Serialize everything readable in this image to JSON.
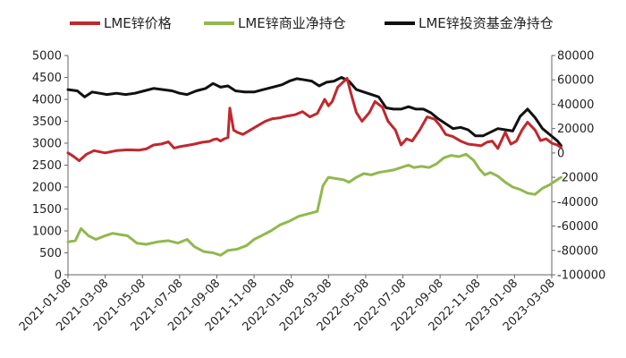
{
  "chart_data": {
    "type": "line",
    "title": "",
    "xlabel": "",
    "ylabel_left": "",
    "ylabel_right": "",
    "legend": {
      "position": "top"
    },
    "ylim_left": [
      0,
      5000
    ],
    "ylim_right": [
      -100000,
      80000
    ],
    "yticks_left": [
      0,
      500,
      1000,
      1500,
      2000,
      2500,
      3000,
      3500,
      4000,
      4500,
      5000
    ],
    "yticks_right": [
      -100000,
      -80000,
      -60000,
      -40000,
      -20000,
      0,
      20000,
      40000,
      60000,
      80000
    ],
    "x_ticks": [
      "2021-01-08",
      "2021-03-08",
      "2021-05-08",
      "2021-07-08",
      "2021-09-08",
      "2021-11-08",
      "2022-01-08",
      "2022-03-08",
      "2022-05-08",
      "2022-07-08",
      "2022-09-08",
      "2022-11-08",
      "2023-01-08",
      "2023-03-08"
    ],
    "series": [
      {
        "name": "LME锌价格",
        "axis": "left",
        "color": "#c0282e",
        "points": [
          [
            0,
            2780
          ],
          [
            0.15,
            2700
          ],
          [
            0.3,
            2600
          ],
          [
            0.5,
            2750
          ],
          [
            0.7,
            2830
          ],
          [
            1,
            2780
          ],
          [
            1.3,
            2830
          ],
          [
            1.6,
            2850
          ],
          [
            1.9,
            2840
          ],
          [
            2.1,
            2870
          ],
          [
            2.3,
            2960
          ],
          [
            2.5,
            2980
          ],
          [
            2.7,
            3030
          ],
          [
            2.85,
            2890
          ],
          [
            3,
            2920
          ],
          [
            3.2,
            2950
          ],
          [
            3.4,
            2980
          ],
          [
            3.6,
            3020
          ],
          [
            3.8,
            3040
          ],
          [
            3.9,
            3080
          ],
          [
            4,
            3100
          ],
          [
            4.1,
            3050
          ],
          [
            4.2,
            3100
          ],
          [
            4.3,
            3130
          ],
          [
            4.35,
            3800
          ],
          [
            4.45,
            3300
          ],
          [
            4.55,
            3250
          ],
          [
            4.7,
            3200
          ],
          [
            4.9,
            3300
          ],
          [
            5.1,
            3400
          ],
          [
            5.3,
            3500
          ],
          [
            5.5,
            3560
          ],
          [
            5.7,
            3580
          ],
          [
            5.9,
            3620
          ],
          [
            6.1,
            3650
          ],
          [
            6.3,
            3720
          ],
          [
            6.5,
            3600
          ],
          [
            6.7,
            3680
          ],
          [
            6.9,
            4000
          ],
          [
            7.0,
            3850
          ],
          [
            7.1,
            3950
          ],
          [
            7.25,
            4280
          ],
          [
            7.4,
            4400
          ],
          [
            7.5,
            4480
          ],
          [
            7.6,
            4150
          ],
          [
            7.75,
            3700
          ],
          [
            7.9,
            3500
          ],
          [
            8.1,
            3700
          ],
          [
            8.25,
            3950
          ],
          [
            8.45,
            3820
          ],
          [
            8.6,
            3500
          ],
          [
            8.8,
            3300
          ],
          [
            8.95,
            2960
          ],
          [
            9.1,
            3100
          ],
          [
            9.25,
            3050
          ],
          [
            9.45,
            3300
          ],
          [
            9.65,
            3600
          ],
          [
            9.85,
            3550
          ],
          [
            10.0,
            3400
          ],
          [
            10.15,
            3200
          ],
          [
            10.35,
            3150
          ],
          [
            10.55,
            3050
          ],
          [
            10.75,
            2980
          ],
          [
            10.95,
            2960
          ],
          [
            11.1,
            2940
          ],
          [
            11.25,
            3020
          ],
          [
            11.4,
            3050
          ],
          [
            11.55,
            2880
          ],
          [
            11.75,
            3250
          ],
          [
            11.9,
            2980
          ],
          [
            12.05,
            3050
          ],
          [
            12.2,
            3300
          ],
          [
            12.35,
            3480
          ],
          [
            12.55,
            3300
          ],
          [
            12.7,
            3060
          ],
          [
            12.85,
            3100
          ],
          [
            13.0,
            3000
          ],
          [
            13.15,
            2960
          ],
          [
            13.25,
            2900
          ]
        ]
      },
      {
        "name": "LME锌商业净持仓",
        "axis": "right",
        "color": "#92b84d",
        "points": [
          [
            0,
            -73000
          ],
          [
            0.2,
            -72000
          ],
          [
            0.35,
            -62000
          ],
          [
            0.55,
            -68000
          ],
          [
            0.75,
            -71000
          ],
          [
            1,
            -68000
          ],
          [
            1.2,
            -66000
          ],
          [
            1.4,
            -67000
          ],
          [
            1.6,
            -68000
          ],
          [
            1.85,
            -74000
          ],
          [
            2.1,
            -75000
          ],
          [
            2.4,
            -73000
          ],
          [
            2.7,
            -72000
          ],
          [
            2.95,
            -74000
          ],
          [
            3.2,
            -71000
          ],
          [
            3.4,
            -77000
          ],
          [
            3.65,
            -81000
          ],
          [
            3.9,
            -82000
          ],
          [
            4.1,
            -84000
          ],
          [
            4.3,
            -80000
          ],
          [
            4.55,
            -79000
          ],
          [
            4.8,
            -76000
          ],
          [
            5.0,
            -71000
          ],
          [
            5.2,
            -68000
          ],
          [
            5.45,
            -64000
          ],
          [
            5.7,
            -59000
          ],
          [
            5.95,
            -56000
          ],
          [
            6.2,
            -52000
          ],
          [
            6.45,
            -50000
          ],
          [
            6.7,
            -48000
          ],
          [
            6.85,
            -27000
          ],
          [
            7.0,
            -20000
          ],
          [
            7.2,
            -21000
          ],
          [
            7.4,
            -22000
          ],
          [
            7.55,
            -24000
          ],
          [
            7.75,
            -20000
          ],
          [
            7.95,
            -17000
          ],
          [
            8.15,
            -18000
          ],
          [
            8.35,
            -16000
          ],
          [
            8.55,
            -15000
          ],
          [
            8.75,
            -14000
          ],
          [
            8.95,
            -12000
          ],
          [
            9.15,
            -10000
          ],
          [
            9.3,
            -12000
          ],
          [
            9.5,
            -11000
          ],
          [
            9.7,
            -12000
          ],
          [
            9.9,
            -9000
          ],
          [
            10.1,
            -4000
          ],
          [
            10.3,
            -2000
          ],
          [
            10.5,
            -3000
          ],
          [
            10.7,
            -1000
          ],
          [
            10.9,
            -6000
          ],
          [
            11.05,
            -13000
          ],
          [
            11.2,
            -18000
          ],
          [
            11.35,
            -16000
          ],
          [
            11.55,
            -19000
          ],
          [
            11.75,
            -24000
          ],
          [
            11.95,
            -28000
          ],
          [
            12.15,
            -30000
          ],
          [
            12.35,
            -33000
          ],
          [
            12.55,
            -34000
          ],
          [
            12.75,
            -29000
          ],
          [
            12.95,
            -26000
          ],
          [
            13.15,
            -22000
          ],
          [
            13.25,
            -20000
          ]
        ]
      },
      {
        "name": "LME锌投资基金净持仓",
        "axis": "right",
        "color": "#111111",
        "points": [
          [
            0,
            52000
          ],
          [
            0.25,
            51000
          ],
          [
            0.45,
            46000
          ],
          [
            0.65,
            50000
          ],
          [
            0.85,
            49000
          ],
          [
            1.05,
            48000
          ],
          [
            1.3,
            49000
          ],
          [
            1.55,
            48000
          ],
          [
            1.8,
            49000
          ],
          [
            2.05,
            51000
          ],
          [
            2.3,
            53000
          ],
          [
            2.55,
            52000
          ],
          [
            2.8,
            51000
          ],
          [
            3.0,
            49000
          ],
          [
            3.2,
            48000
          ],
          [
            3.45,
            51000
          ],
          [
            3.7,
            53000
          ],
          [
            3.9,
            57000
          ],
          [
            4.1,
            54000
          ],
          [
            4.3,
            55000
          ],
          [
            4.5,
            51000
          ],
          [
            4.75,
            50000
          ],
          [
            5.0,
            50000
          ],
          [
            5.25,
            52000
          ],
          [
            5.5,
            54000
          ],
          [
            5.75,
            56000
          ],
          [
            5.95,
            59000
          ],
          [
            6.15,
            61000
          ],
          [
            6.35,
            60000
          ],
          [
            6.55,
            59000
          ],
          [
            6.75,
            55000
          ],
          [
            6.95,
            58000
          ],
          [
            7.15,
            59000
          ],
          [
            7.35,
            62000
          ],
          [
            7.55,
            59000
          ],
          [
            7.75,
            52000
          ],
          [
            7.95,
            50000
          ],
          [
            8.15,
            48000
          ],
          [
            8.35,
            46000
          ],
          [
            8.55,
            37000
          ],
          [
            8.75,
            36000
          ],
          [
            8.95,
            36000
          ],
          [
            9.15,
            38000
          ],
          [
            9.35,
            36000
          ],
          [
            9.55,
            36000
          ],
          [
            9.75,
            33000
          ],
          [
            9.95,
            28000
          ],
          [
            10.15,
            24000
          ],
          [
            10.35,
            20000
          ],
          [
            10.55,
            21000
          ],
          [
            10.75,
            19000
          ],
          [
            10.95,
            14000
          ],
          [
            11.15,
            14000
          ],
          [
            11.35,
            17000
          ],
          [
            11.55,
            20000
          ],
          [
            11.75,
            19000
          ],
          [
            11.95,
            18000
          ],
          [
            12.15,
            30000
          ],
          [
            12.35,
            36000
          ],
          [
            12.55,
            29000
          ],
          [
            12.75,
            20000
          ],
          [
            12.95,
            15000
          ],
          [
            13.15,
            10000
          ],
          [
            13.25,
            6000
          ]
        ]
      }
    ]
  }
}
